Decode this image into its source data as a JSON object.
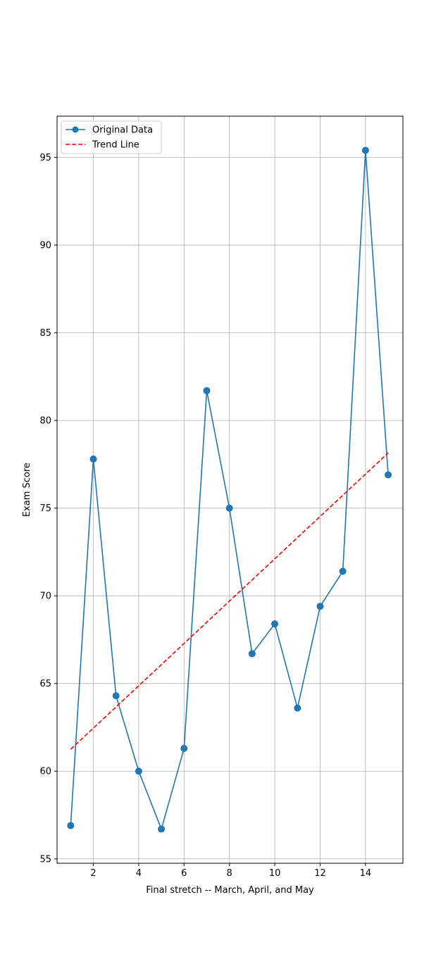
{
  "chart_data": {
    "type": "line",
    "title": "",
    "xlabel": "Final stretch -- March, April, and May",
    "ylabel": "Exam Score",
    "xlim": [
      0.4,
      15.65
    ],
    "ylim": [
      54.75,
      97.35
    ],
    "xticks": [
      2,
      4,
      6,
      8,
      10,
      12,
      14
    ],
    "yticks": [
      55,
      60,
      65,
      70,
      75,
      80,
      85,
      90,
      95
    ],
    "grid": true,
    "legend_position": "top-left",
    "series": [
      {
        "name": "Original Data",
        "style": "line-with-markers",
        "color": "#1f77b4",
        "x": [
          1,
          2,
          3,
          4,
          5,
          6,
          7,
          8,
          9,
          10,
          11,
          12,
          13,
          14,
          15
        ],
        "y": [
          56.9,
          77.8,
          64.3,
          60.0,
          56.7,
          61.3,
          81.7,
          75.0,
          66.7,
          68.4,
          63.6,
          69.4,
          71.4,
          95.4,
          76.9
        ]
      },
      {
        "name": "Trend Line",
        "style": "dashed",
        "color": "#ff0000",
        "x": [
          1,
          15
        ],
        "y": [
          61.25,
          78.15
        ]
      }
    ]
  }
}
